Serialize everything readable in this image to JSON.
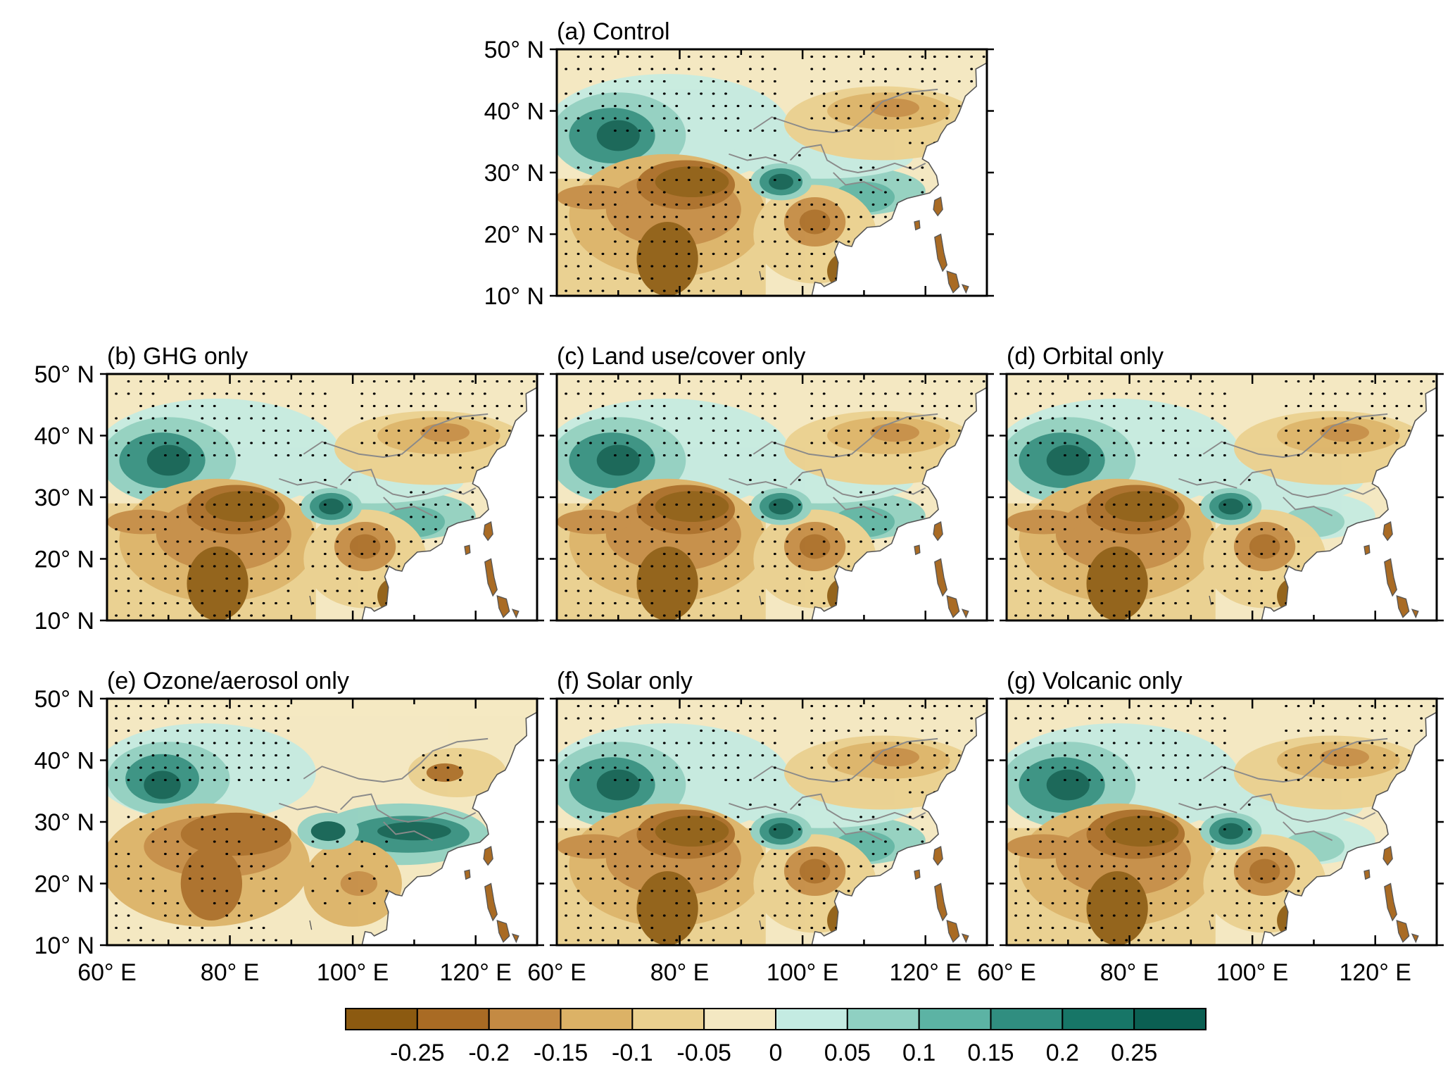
{
  "panels": [
    {
      "id": "a",
      "title": "(a) Control",
      "pattern": "base"
    },
    {
      "id": "b",
      "title": "(b) GHG only",
      "pattern": "base"
    },
    {
      "id": "c",
      "title": "(c) Land use/cover only",
      "pattern": "base"
    },
    {
      "id": "d",
      "title": "(d) Orbital only",
      "pattern": "weak"
    },
    {
      "id": "e",
      "title": "(e) Ozone/aerosol only",
      "pattern": "ozone"
    },
    {
      "id": "f",
      "title": "(f) Solar only",
      "pattern": "base"
    },
    {
      "id": "g",
      "title": "(g) Volcanic only",
      "pattern": "weak"
    }
  ],
  "lat_labels": [
    "10° N",
    "20° N",
    "30° N",
    "40° N",
    "50° N"
  ],
  "lon_labels": [
    "60° E",
    "80° E",
    "100° E",
    "120° E"
  ],
  "map_extent": {
    "lon": [
      60,
      130
    ],
    "lat": [
      10,
      50
    ]
  },
  "colorbar": {
    "labels": [
      "-0.25",
      "-0.2",
      "-0.15",
      "-0.1",
      "-0.05",
      "0",
      "0.05",
      "0.1",
      "0.15",
      "0.2",
      "0.25"
    ],
    "colors": [
      "#8c5a10",
      "#a96b24",
      "#c48a43",
      "#dcb266",
      "#ead08f",
      "#f4e8c2",
      "#c4ebe2",
      "#8fd0c2",
      "#5cb3a4",
      "#308e80",
      "#177667",
      "#0b5f52"
    ]
  },
  "colors": {
    "stipple": "#000000",
    "river": "#8a8a8a",
    "coast": "#555555",
    "ocean": "#ffffff"
  }
}
